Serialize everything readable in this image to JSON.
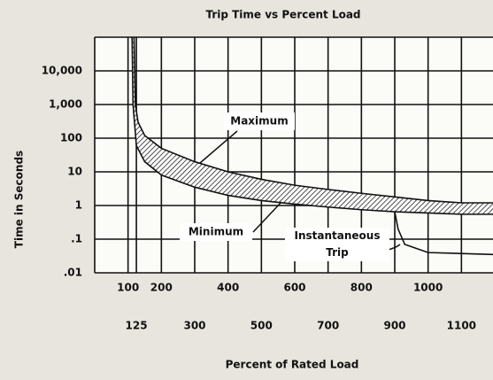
{
  "chart_data": {
    "type": "line",
    "title": "Trip Time vs Percent Load",
    "y_label": "Time in Seconds",
    "x_label": "Percent of Rated Load",
    "log_y": true,
    "grid": true,
    "color": "#111111",
    "xlim": [
      0,
      1200
    ],
    "ylim": [
      0.01,
      100000
    ],
    "xticks": [
      100,
      200,
      400,
      600,
      800,
      1000
    ],
    "xticks_lower": [
      125,
      300,
      500,
      700,
      900,
      1100
    ],
    "yticks": [
      {
        "value": 10000,
        "label": "10,000"
      },
      {
        "value": 1000,
        "label": "1,000"
      },
      100,
      10,
      1,
      {
        "value": 0.1,
        "label": ".1"
      },
      {
        "value": 0.01,
        "label": ".01"
      }
    ],
    "series": [
      {
        "name": "Maximum",
        "x": [
          118,
          122,
          130,
          150,
          200,
          300,
          400,
          500,
          600,
          700,
          800,
          900,
          1000,
          1100,
          1200
        ],
        "values": [
          100000,
          1000,
          300,
          120,
          50,
          20,
          10,
          6,
          4,
          3,
          2.3,
          1.8,
          1.4,
          1.2,
          1.2
        ]
      },
      {
        "name": "Minimum",
        "x": [
          112,
          115,
          125,
          150,
          200,
          300,
          400,
          500,
          600,
          700,
          800,
          900,
          1000,
          1100,
          1200
        ],
        "values": [
          100000,
          1000,
          60,
          20,
          8,
          3.5,
          2,
          1.4,
          1.1,
          0.9,
          0.75,
          0.65,
          0.6,
          0.55,
          0.55
        ]
      },
      {
        "name": "Instantaneous Trip",
        "x": [
          900,
          910,
          930,
          1000,
          1200
        ],
        "values": [
          0.65,
          0.2,
          0.07,
          0.04,
          0.035
        ]
      }
    ]
  }
}
